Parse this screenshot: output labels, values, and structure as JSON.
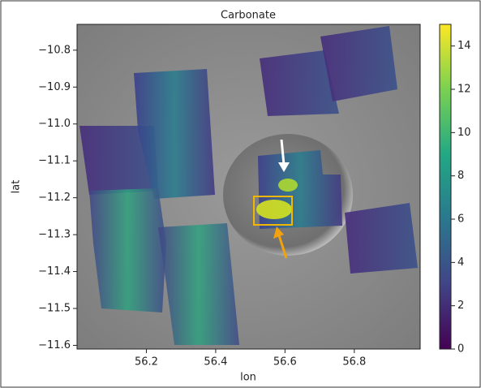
{
  "chart_data": {
    "type": "image",
    "title": "Carbonate",
    "x_label": "lon",
    "y_label": "lat",
    "xlim": [
      56.0,
      56.99
    ],
    "xticks": [
      56.2,
      56.4,
      56.6,
      56.8
    ],
    "ylim": [
      -11.61,
      -10.73
    ],
    "yticks": [
      {
        "value": -10.8,
        "label": "−10.8"
      },
      {
        "value": -10.9,
        "label": "−10.9"
      },
      {
        "value": -11.0,
        "label": "−11.0"
      },
      {
        "value": -11.1,
        "label": "−11.1"
      },
      {
        "value": -11.2,
        "label": "−11.2"
      },
      {
        "value": -11.3,
        "label": "−11.3"
      },
      {
        "value": -11.4,
        "label": "−11.4"
      },
      {
        "value": -11.5,
        "label": "−11.5"
      },
      {
        "value": -11.6,
        "label": "−11.6"
      }
    ],
    "colorbar": {
      "lim": [
        0,
        15
      ],
      "ticks": [
        0,
        2,
        4,
        6,
        8,
        10,
        12,
        14
      ],
      "colormap": "viridis"
    }
  }
}
